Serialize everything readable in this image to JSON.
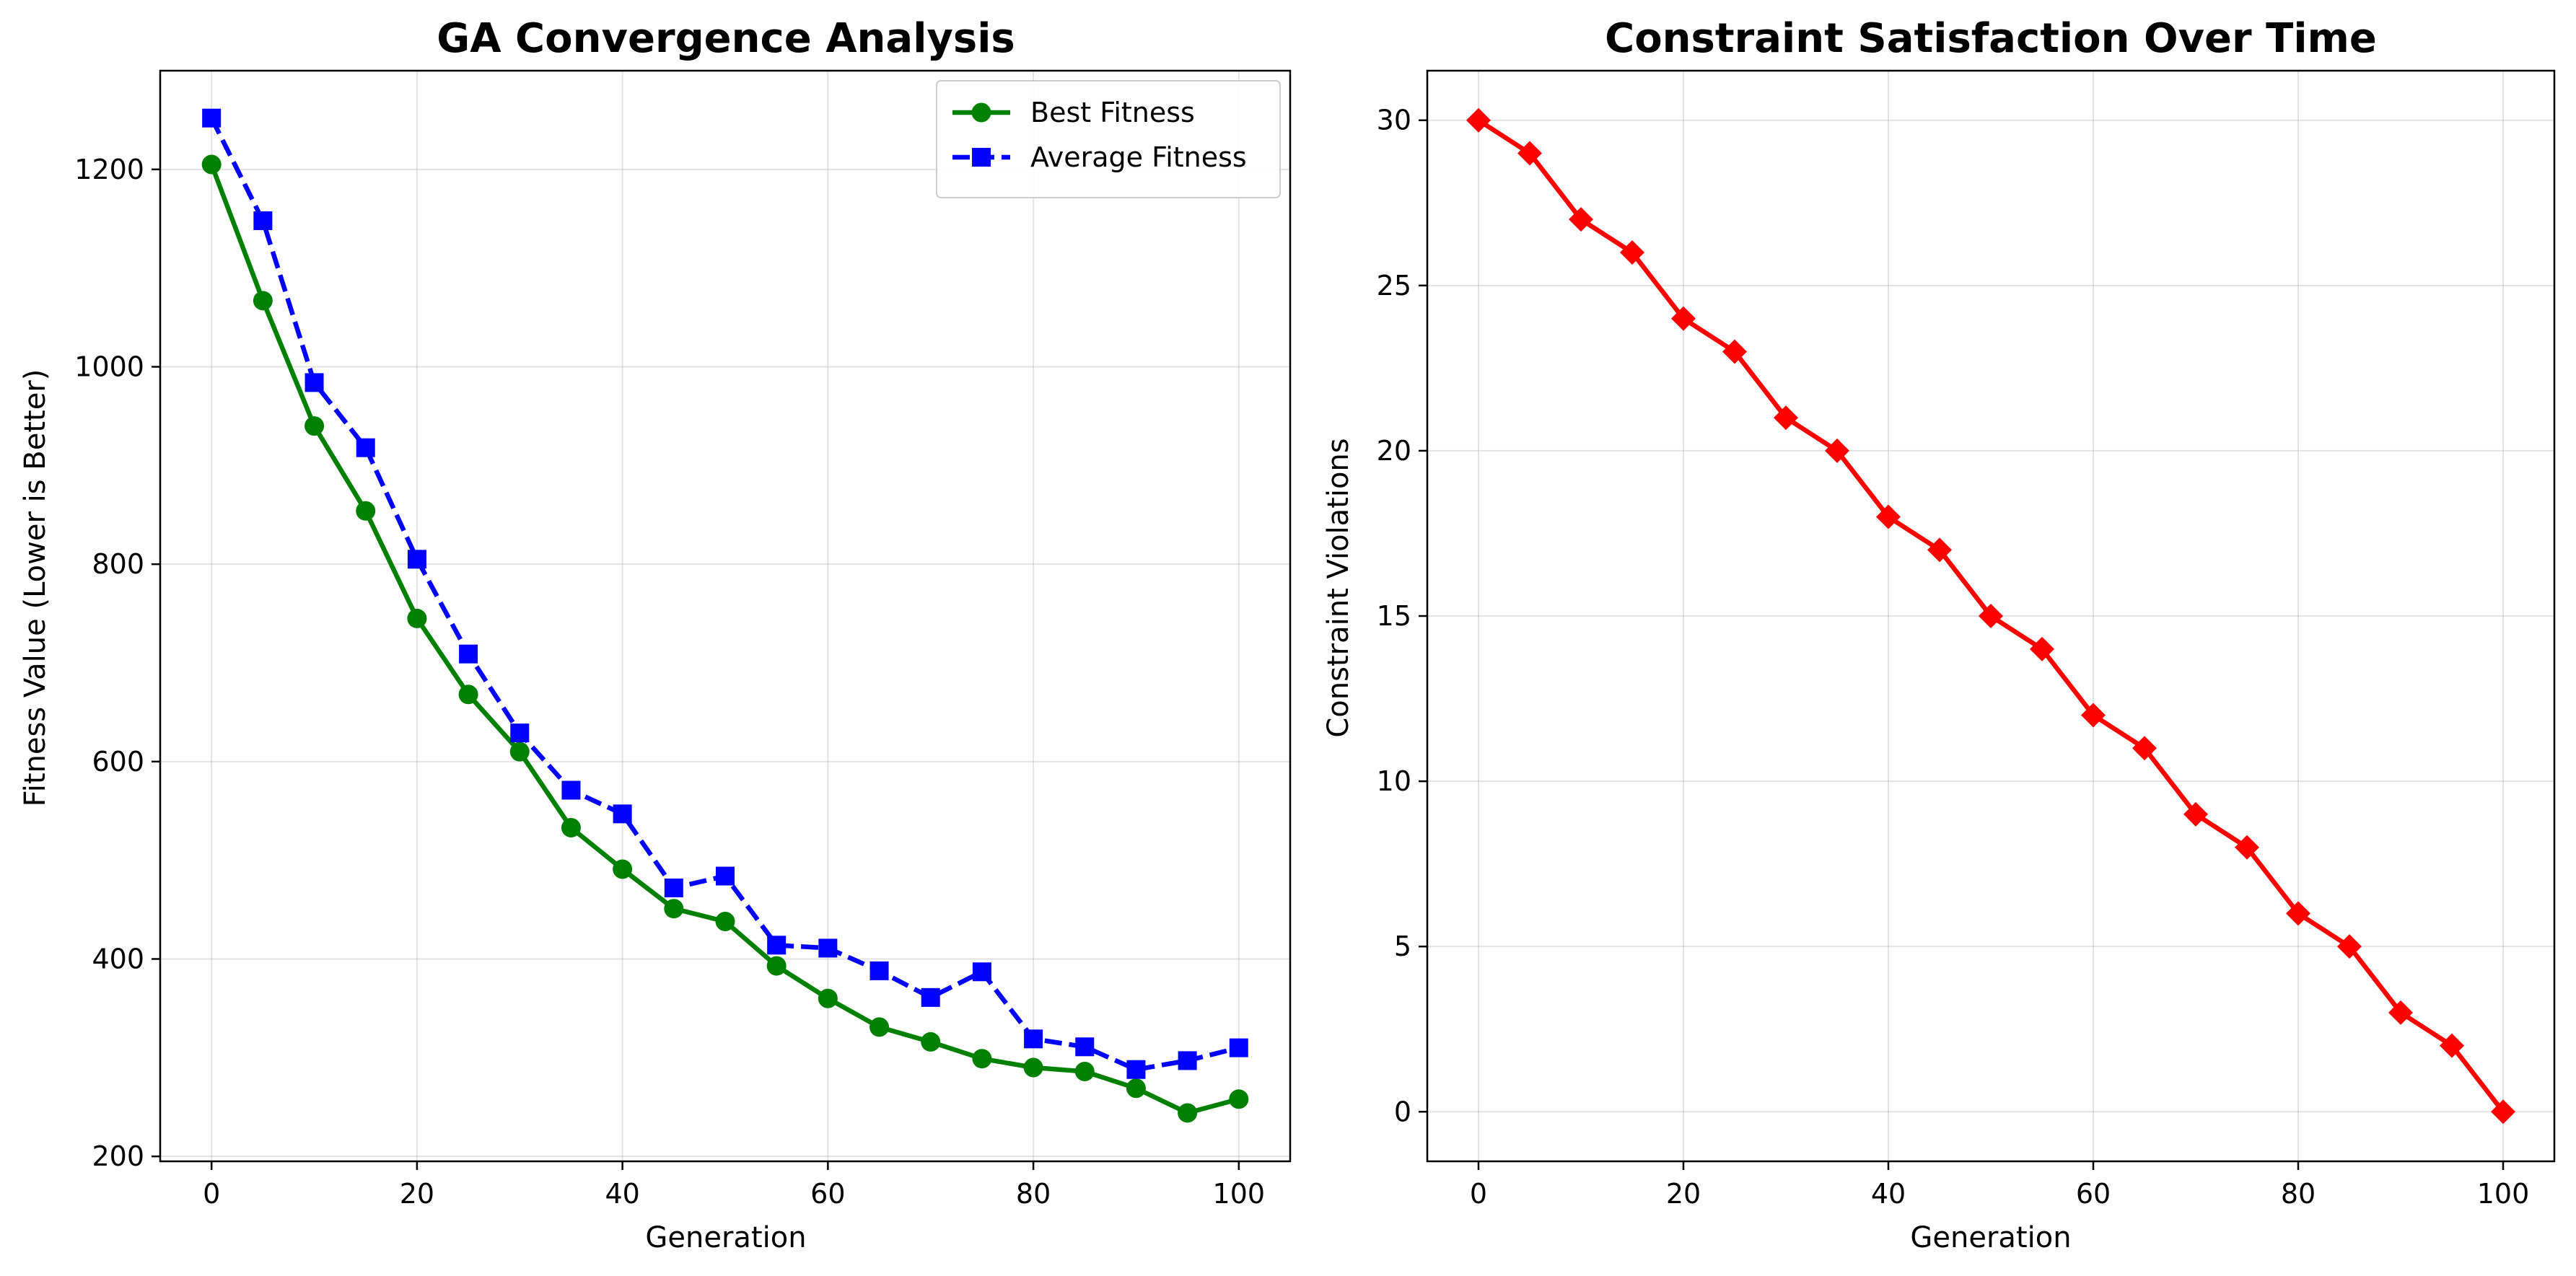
{
  "chart_data": [
    {
      "type": "line",
      "title": "GA Convergence Analysis",
      "xlabel": "Generation",
      "ylabel": "Fitness Value (Lower is Better)",
      "xlim": [
        -5,
        105
      ],
      "ylim": [
        195,
        1300
      ],
      "xticks": [
        0,
        20,
        40,
        60,
        80,
        100
      ],
      "yticks": [
        200,
        400,
        600,
        800,
        1000,
        1200
      ],
      "grid": true,
      "legend": "top-right",
      "x": [
        0,
        5,
        10,
        15,
        20,
        25,
        30,
        35,
        40,
        45,
        50,
        55,
        60,
        65,
        70,
        75,
        80,
        85,
        90,
        95,
        100
      ],
      "series": [
        {
          "name": "Best Fitness",
          "color": "#008000",
          "marker": "circle",
          "dash": "solid",
          "values": [
            1205,
            1067,
            940,
            854,
            745,
            668,
            610,
            533,
            491,
            451,
            438,
            393,
            360,
            331,
            316,
            299,
            290,
            286,
            269,
            244,
            258
          ]
        },
        {
          "name": "Average Fitness",
          "color": "#0000ff",
          "marker": "square",
          "dash": "dashed",
          "values": [
            1252,
            1148,
            984,
            918,
            805,
            709,
            629,
            571,
            547,
            472,
            484,
            414,
            411,
            388,
            361,
            387,
            319,
            311,
            288,
            297,
            310
          ]
        }
      ]
    },
    {
      "type": "line",
      "title": "Constraint Satisfaction Over Time",
      "xlabel": "Generation",
      "ylabel": "Constraint Violations",
      "xlim": [
        -5,
        105
      ],
      "ylim": [
        -1.5,
        31.5
      ],
      "xticks": [
        0,
        20,
        40,
        60,
        80,
        100
      ],
      "yticks": [
        0,
        5,
        10,
        15,
        20,
        25,
        30
      ],
      "grid": true,
      "x": [
        0,
        5,
        10,
        15,
        20,
        25,
        30,
        35,
        40,
        45,
        50,
        55,
        60,
        65,
        70,
        75,
        80,
        85,
        90,
        95,
        100
      ],
      "series": [
        {
          "color": "#ff0000",
          "marker": "diamond",
          "dash": "solid",
          "values": [
            30,
            29,
            27,
            26,
            24,
            23,
            21,
            20,
            18,
            17,
            15,
            14,
            12,
            11,
            9,
            8,
            6,
            5,
            3,
            2,
            0
          ]
        }
      ]
    }
  ]
}
